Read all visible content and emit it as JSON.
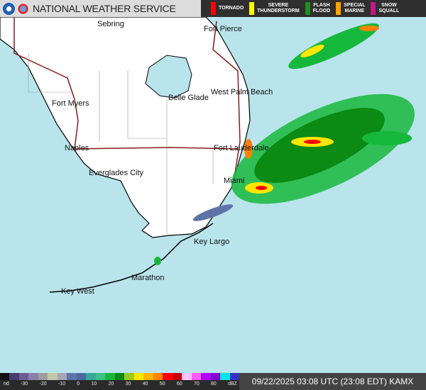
{
  "header": {
    "title": "NATIONAL WEATHER SERVICE",
    "warnings": [
      {
        "label": "TORNADO",
        "color": "#ff0000"
      },
      {
        "label": "SEVERE\nTHUNDERSTORM",
        "color": "#ffff00"
      },
      {
        "label": "FLASH\nFLOOD",
        "color": "#228b22"
      },
      {
        "label": "SPECIAL\nMARINE",
        "color": "#ffa500"
      },
      {
        "label": "SNOW\nSQUALL",
        "color": "#c71585"
      }
    ]
  },
  "map": {
    "cities": [
      "Sebring",
      "Fort Pierce",
      "Fort Myers",
      "West Palm Beach",
      "Belle Glade",
      "Naples",
      "Fort Lauderdale",
      "Everglades City",
      "Miami",
      "Key Largo",
      "Marathon",
      "Key West"
    ],
    "land_color": "#ffffff",
    "water_color": "#b9e4ec"
  },
  "legend": {
    "ticks": [
      "nd",
      "-30",
      "-20",
      "-10",
      "0",
      "10",
      "20",
      "30",
      "40",
      "50",
      "60",
      "70",
      "80",
      "dBZ"
    ],
    "colors": [
      "#111111",
      "#4b3a6e",
      "#6e5a94",
      "#8c7fa8",
      "#9e9e9e",
      "#c5c5a8",
      "#a7a7b5",
      "#5e74a8",
      "#4a6aa6",
      "#3aa89a",
      "#3cc08c",
      "#16b83c",
      "#0b8a14",
      "#9ccc18",
      "#ffe600",
      "#ffb400",
      "#ff8200",
      "#ff0000",
      "#c80000",
      "#ffc0ff",
      "#ff5aff",
      "#b400ff",
      "#8200c8",
      "#00e6f0",
      "#3232c8"
    ]
  },
  "timestamp": "09/22/2025 03:08 UTC (23:08 EDT) KAMX"
}
